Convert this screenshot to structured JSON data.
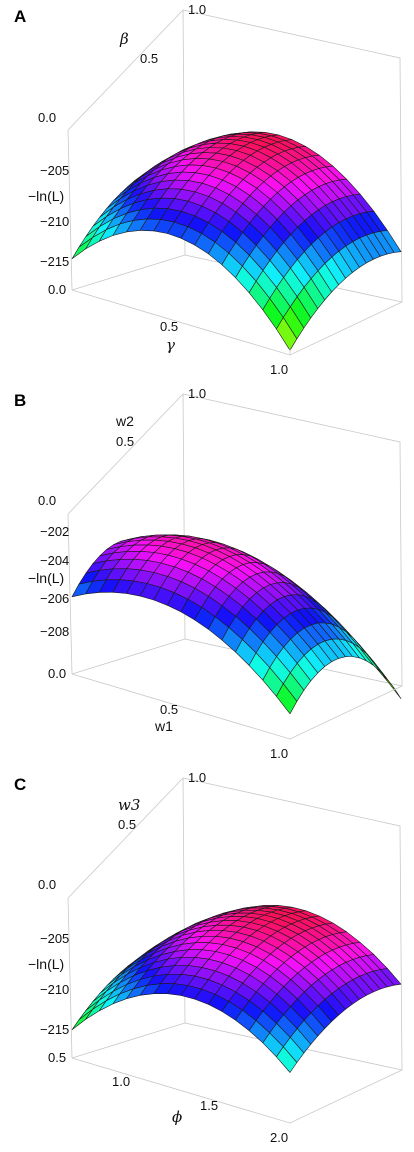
{
  "chart_data": [
    {
      "panel_label": "A",
      "type": "surface3d",
      "xlabel": "γ",
      "ylabel": "β",
      "zlabel": "−ln(L)",
      "x_ticks": [
        "0.0",
        "0.5",
        "1.0"
      ],
      "y_ticks": [
        "0.0",
        "0.5",
        "1.0"
      ],
      "z_ticks": [
        "−205",
        "−210",
        "−215"
      ],
      "xlim": [
        0,
        1
      ],
      "ylim": [
        0,
        1
      ],
      "zlim": [
        -217,
        -200
      ],
      "surface": {
        "z_at_origin": -209,
        "z_max": -201,
        "z_at_x1_y0": -216.5,
        "x_peak": 0.45,
        "y_peak": 0.85
      }
    },
    {
      "panel_label": "B",
      "type": "surface3d",
      "xlabel": "w1",
      "ylabel": "w2",
      "zlabel": "−ln(L)",
      "x_ticks": [
        "0.0",
        "0.5",
        "1.0"
      ],
      "y_ticks": [
        "0.0",
        "0.5",
        "1.0"
      ],
      "z_ticks": [
        "−202",
        "−204",
        "−206",
        "−208"
      ],
      "xlim": [
        0,
        1
      ],
      "ylim": [
        0,
        1
      ],
      "zlim": [
        -209,
        -200
      ],
      "surface": {
        "z_at_origin": -206.5,
        "z_max": -201.2,
        "z_at_x1_y0": -208.7,
        "x_peak": 0.35,
        "y_peak": 0.45
      }
    },
    {
      "panel_label": "C",
      "type": "surface3d",
      "xlabel": "ϕ",
      "ylabel": "w3",
      "zlabel": "−ln(L)",
      "x_ticks": [
        "0.5",
        "1.0",
        "1.5",
        "2.0"
      ],
      "y_ticks": [
        "0.0",
        "0.5",
        "1.0"
      ],
      "z_ticks": [
        "−205",
        "−210",
        "−215"
      ],
      "xlim": [
        0,
        2
      ],
      "ylim": [
        0,
        1
      ],
      "zlim": [
        -217,
        -200
      ],
      "surface": {
        "z_at_origin": -208.5,
        "z_max": -201,
        "z_at_x1_y0": -214,
        "x_peak": 0.55,
        "y_peak": 0.85
      }
    }
  ]
}
